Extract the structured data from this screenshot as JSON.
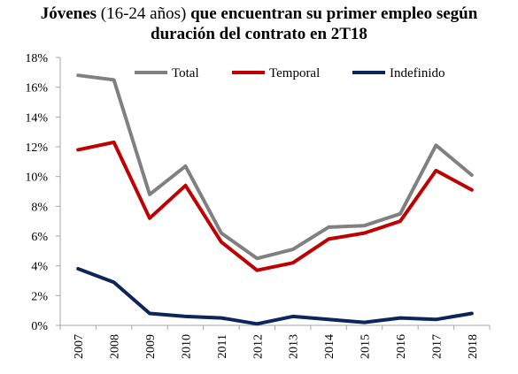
{
  "title": {
    "line1_bold_a": "Jóvenes ",
    "line1_normal": "(16-24 años) ",
    "line1_bold_b": "que encuentran su primer empleo según",
    "line2": "duración del contrato en 2T18"
  },
  "chart_data": {
    "type": "line",
    "title": "Jóvenes (16-24 años) que encuentran su primer empleo según duración del contrato en 2T18",
    "xlabel": "",
    "ylabel": "",
    "x": [
      "2007",
      "2008",
      "2009",
      "2010",
      "2011",
      "2012",
      "2013",
      "2014",
      "2015",
      "2016",
      "2017",
      "2018"
    ],
    "ylim": [
      0,
      18
    ],
    "yticks": [
      0,
      2,
      4,
      6,
      8,
      10,
      12,
      14,
      16,
      18
    ],
    "ytick_labels": [
      "0%",
      "2%",
      "4%",
      "6%",
      "8%",
      "10%",
      "12%",
      "14%",
      "16%",
      "18%"
    ],
    "grid": false,
    "legend_position": "top",
    "series": [
      {
        "name": "Total",
        "color": "#808080",
        "values": [
          16.8,
          16.5,
          8.8,
          10.7,
          6.2,
          4.5,
          5.1,
          6.6,
          6.7,
          7.5,
          12.1,
          10.1
        ]
      },
      {
        "name": "Temporal",
        "color": "#C00000",
        "values": [
          11.8,
          12.3,
          7.2,
          9.4,
          5.6,
          3.7,
          4.2,
          5.8,
          6.2,
          7.0,
          10.4,
          9.1
        ]
      },
      {
        "name": "Indefinido",
        "color": "#0D2559",
        "values": [
          3.8,
          2.9,
          0.8,
          0.6,
          0.5,
          0.1,
          0.6,
          0.4,
          0.2,
          0.5,
          0.4,
          0.8
        ]
      }
    ]
  }
}
